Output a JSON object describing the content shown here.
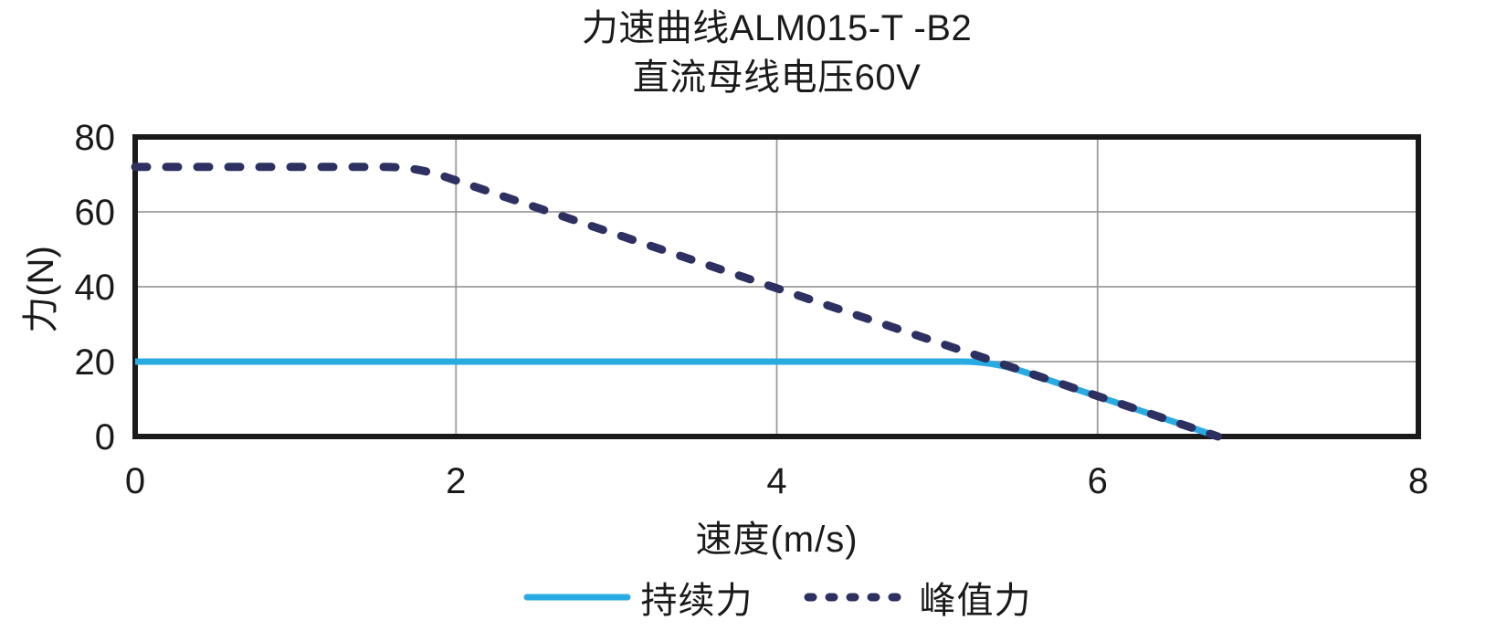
{
  "chart_data": {
    "type": "line",
    "title": "力速曲线ALM015-T -B2",
    "subtitle": "直流母线电压60V",
    "xlabel": "速度(m/s)",
    "ylabel": "力(N)",
    "xlim": [
      0,
      8
    ],
    "ylim": [
      0,
      80
    ],
    "x_ticks": [
      0,
      2,
      4,
      6,
      8
    ],
    "y_ticks": [
      0,
      20,
      40,
      60,
      80
    ],
    "grid": true,
    "legend_position": "bottom-center",
    "series": [
      {
        "name": "持续力",
        "style": "solid",
        "color": "#29ABE2",
        "width": 7,
        "points": [
          [
            0,
            20
          ],
          [
            5.35,
            20
          ],
          [
            6.75,
            0
          ]
        ]
      },
      {
        "name": "峰值力",
        "style": "dashed",
        "color": "#2D3061",
        "width": 9,
        "points": [
          [
            0,
            72
          ],
          [
            1.75,
            72
          ],
          [
            6.75,
            0
          ]
        ]
      }
    ]
  },
  "colors": {
    "frame": "#1A1A1A",
    "grid": "#9B9B9B",
    "text": "#1A1A1A",
    "continuous_accent": "#29ABE2",
    "peak_accent": "#2D3061"
  }
}
